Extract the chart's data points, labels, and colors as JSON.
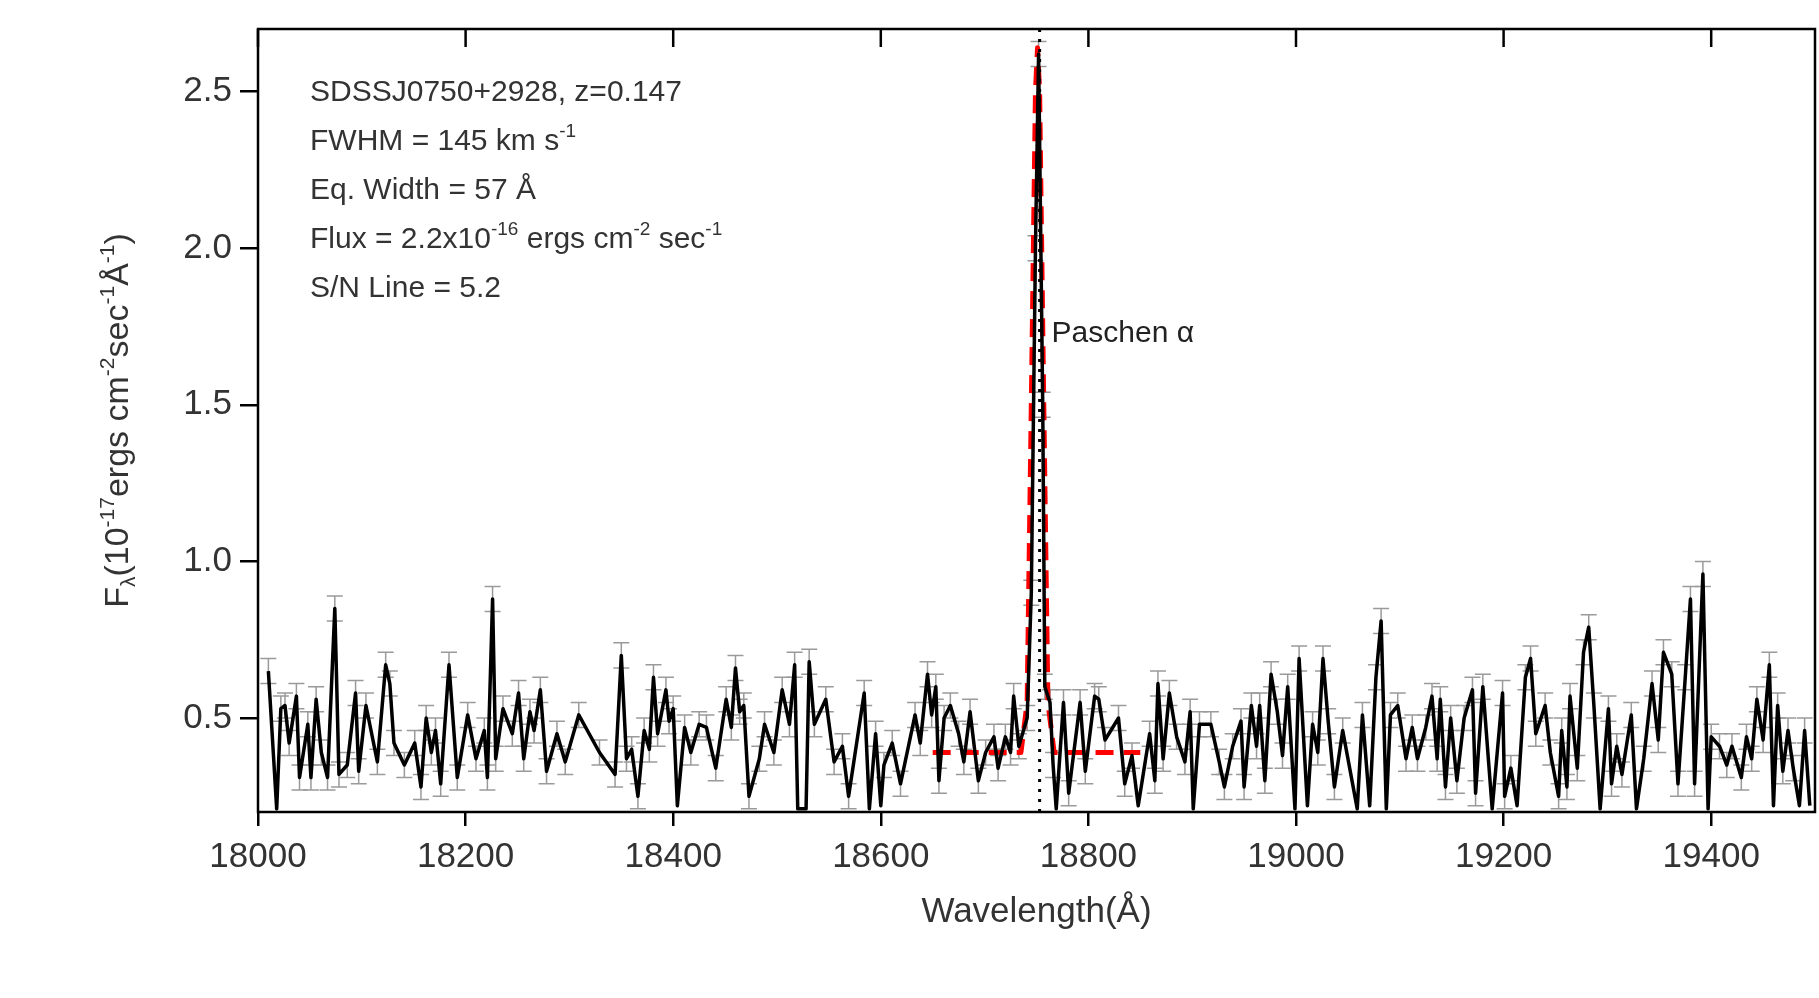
{
  "chart_data": {
    "type": "line",
    "xlabel": "Wavelength(Å)",
    "ylabel": "F$_{λ}$(10$^{-17}$ergs cm$^{-2}$sec$^{-1}$Å$^{-1}$)",
    "annotations": [
      "SDSSJ0750+2928, z=0.147",
      "FWHM = 145 km s$^{-1}$",
      "Eq. Width = 57 Å",
      "Flux = 2.2x10$^{-16}$ ergs cm$^{-2}$ sec$^{-1}$",
      "S/N Line = 5.2"
    ],
    "xlim": [
      18000,
      19500
    ],
    "xticks": [
      18000,
      18200,
      18400,
      18600,
      18800,
      19000,
      19200,
      19400
    ],
    "ylim": [
      0.2,
      2.7
    ],
    "yticks": [
      {
        "value": 0.5,
        "label": "0.5"
      },
      {
        "value": 1,
        "label": "1.0"
      },
      {
        "value": 1.5,
        "label": "1.5"
      },
      {
        "value": 2,
        "label": "2.0"
      },
      {
        "value": 2.5,
        "label": "2.5"
      }
    ],
    "legend": false,
    "marker": "none",
    "ref_lines": [
      {
        "axis": "x",
        "value": 18753,
        "label": "Paschen α",
        "line_style": "dotted",
        "color": "#000000"
      }
    ],
    "series": [
      {
        "type": "line",
        "color": "#000000",
        "line_style": "solid",
        "x": [
          18010,
          18018,
          18022,
          18026,
          18030,
          18037,
          18040,
          18048,
          18051,
          18056,
          18061,
          18067,
          18074,
          18078,
          18086,
          18094,
          18097,
          18104,
          18115,
          18123,
          18127,
          18131,
          18141,
          18151,
          18157,
          18162,
          18167,
          18171,
          18176,
          18184,
          18192,
          18202,
          18210,
          18218,
          18221,
          18226,
          18229,
          18236,
          18245,
          18251,
          18256,
          18262,
          18266,
          18272,
          18278,
          18288,
          18296,
          18309,
          18329,
          18344,
          18350,
          18355,
          18360,
          18366,
          18372,
          18377,
          18381,
          18385,
          18393,
          18396,
          18400,
          18404,
          18411,
          18417,
          18425,
          18432,
          18441,
          18451,
          18456,
          18460,
          18464,
          18468,
          18473,
          18483,
          18488,
          18497,
          18505,
          18512,
          18517,
          18520,
          18528,
          18531,
          18536,
          18547,
          18555,
          18563,
          18569,
          18584,
          18589,
          18595,
          18600,
          18603,
          18611,
          18619,
          18633,
          18638,
          18645,
          18649,
          18653,
          18656,
          18661,
          18667,
          18675,
          18680,
          18686,
          18694,
          18701,
          18709,
          18713,
          18720,
          18725,
          18728,
          18733,
          18741,
          18745,
          18749,
          18752,
          18756,
          18758,
          18763,
          18766,
          18769,
          18776,
          18781,
          18792,
          18797,
          18806,
          18810,
          18816,
          18829,
          18835,
          18842,
          18848,
          18859,
          18864,
          18867,
          18872,
          18878,
          18885,
          18893,
          18898,
          18901,
          18907,
          18918,
          18926,
          18931,
          18939,
          18947,
          18950,
          18957,
          18962,
          18965,
          18970,
          18976,
          18982,
          18987,
          18992,
          18999,
          19003,
          19011,
          19016,
          19021,
          19026,
          19031,
          19037,
          19045,
          19059,
          19064,
          19071,
          19077,
          19082,
          19087,
          19091,
          19098,
          19106,
          19112,
          19117,
          19125,
          19131,
          19136,
          19139,
          19144,
          19149,
          19155,
          19162,
          19170,
          19173,
          19180,
          19189,
          19199,
          19201,
          19207,
          19213,
          19221,
          19226,
          19231,
          19240,
          19245,
          19253,
          19256,
          19261,
          19264,
          19271,
          19277,
          19282,
          19287,
          19293,
          19301,
          19304,
          19309,
          19314,
          19323,
          19328,
          19335,
          19343,
          19349,
          19354,
          19362,
          19368,
          19375,
          19380,
          19384,
          19392,
          19397,
          19400,
          19408,
          19415,
          19420,
          19429,
          19434,
          19439,
          19444,
          19450,
          19456,
          19460,
          19464,
          19469,
          19474,
          19479,
          19485,
          19490,
          19495
        ],
        "values": [
          0.65,
          0.21,
          0.53,
          0.54,
          0.42,
          0.57,
          0.31,
          0.48,
          0.31,
          0.56,
          0.39,
          0.31,
          0.85,
          0.32,
          0.35,
          0.58,
          0.33,
          0.54,
          0.36,
          0.67,
          0.61,
          0.42,
          0.35,
          0.42,
          0.28,
          0.5,
          0.39,
          0.46,
          0.29,
          0.67,
          0.31,
          0.51,
          0.37,
          0.46,
          0.31,
          0.88,
          0.37,
          0.53,
          0.45,
          0.58,
          0.37,
          0.52,
          0.46,
          0.59,
          0.33,
          0.45,
          0.36,
          0.51,
          0.39,
          0.32,
          0.7,
          0.37,
          0.4,
          0.25,
          0.46,
          0.4,
          0.63,
          0.45,
          0.59,
          0.49,
          0.53,
          0.22,
          0.47,
          0.39,
          0.48,
          0.47,
          0.34,
          0.56,
          0.47,
          0.66,
          0.52,
          0.54,
          0.25,
          0.37,
          0.48,
          0.39,
          0.59,
          0.48,
          0.67,
          0.21,
          0.21,
          0.68,
          0.48,
          0.56,
          0.36,
          0.41,
          0.25,
          0.58,
          0.21,
          0.45,
          0.22,
          0.35,
          0.42,
          0.29,
          0.51,
          0.42,
          0.64,
          0.51,
          0.6,
          0.3,
          0.5,
          0.54,
          0.45,
          0.36,
          0.52,
          0.3,
          0.39,
          0.44,
          0.34,
          0.44,
          0.39,
          0.57,
          0.41,
          0.5,
          0.9,
          2.0,
          2.62,
          1.5,
          0.6,
          0.55,
          0.35,
          0.21,
          0.55,
          0.26,
          0.55,
          0.33,
          0.57,
          0.56,
          0.43,
          0.5,
          0.29,
          0.38,
          0.22,
          0.45,
          0.3,
          0.61,
          0.37,
          0.58,
          0.44,
          0.36,
          0.52,
          0.21,
          0.48,
          0.48,
          0.36,
          0.28,
          0.41,
          0.49,
          0.28,
          0.54,
          0.41,
          0.54,
          0.3,
          0.64,
          0.52,
          0.38,
          0.6,
          0.21,
          0.69,
          0.22,
          0.48,
          0.39,
          0.69,
          0.49,
          0.28,
          0.46,
          0.21,
          0.51,
          0.22,
          0.63,
          0.81,
          0.21,
          0.51,
          0.54,
          0.37,
          0.47,
          0.37,
          0.47,
          0.57,
          0.37,
          0.56,
          0.28,
          0.5,
          0.3,
          0.5,
          0.59,
          0.26,
          0.6,
          0.21,
          0.58,
          0.25,
          0.34,
          0.22,
          0.63,
          0.69,
          0.45,
          0.54,
          0.39,
          0.25,
          0.46,
          0.28,
          0.57,
          0.34,
          0.71,
          0.79,
          0.54,
          0.21,
          0.53,
          0.29,
          0.41,
          0.32,
          0.51,
          0.21,
          0.37,
          0.61,
          0.43,
          0.71,
          0.64,
          0.29,
          0.63,
          0.88,
          0.29,
          0.96,
          0.21,
          0.44,
          0.41,
          0.35,
          0.41,
          0.31,
          0.44,
          0.37,
          0.56,
          0.43,
          0.67,
          0.22,
          0.54,
          0.33,
          0.46,
          0.34,
          0.22,
          0.46,
          0.22
        ],
        "errors": [
          0.04,
          null,
          0.04,
          0.04,
          0.04,
          0.04,
          0.04,
          0.04,
          0.04,
          0.04,
          0.04,
          0.04,
          0.04,
          0.04,
          0.04,
          0.04,
          0.04,
          0.04,
          0.04,
          0.04,
          0.04,
          0.04,
          0.04,
          0.04,
          0.04,
          0.04,
          0.04,
          0.04,
          0.04,
          0.04,
          0.04,
          0.04,
          0.04,
          0.04,
          0.04,
          0.04,
          0.04,
          0.04,
          0.04,
          0.04,
          0.04,
          0.04,
          0.04,
          0.04,
          0.04,
          0.04,
          0.04,
          0.04,
          0.04,
          0.04,
          0.04,
          0.04,
          0.04,
          0.04,
          0.04,
          0.04,
          0.04,
          0.04,
          0.04,
          0.04,
          0.04,
          null,
          0.04,
          0.04,
          0.04,
          0.04,
          0.04,
          0.04,
          0.04,
          0.04,
          0.04,
          0.04,
          0.04,
          0.04,
          0.04,
          0.04,
          0.04,
          0.04,
          0.04,
          null,
          null,
          0.04,
          0.04,
          0.04,
          0.04,
          0.04,
          0.04,
          0.04,
          null,
          0.04,
          null,
          0.04,
          0.04,
          0.04,
          0.04,
          0.04,
          0.04,
          0.04,
          0.04,
          0.04,
          0.04,
          0.04,
          0.04,
          0.04,
          0.04,
          0.04,
          0.04,
          0.04,
          0.04,
          0.04,
          0.04,
          0.04,
          0.04,
          0.04,
          0.04,
          0.04,
          0.04,
          0.04,
          0.04,
          0.04,
          0.04,
          null,
          0.04,
          0.04,
          0.04,
          0.04,
          0.04,
          0.04,
          0.04,
          0.04,
          0.04,
          0.04,
          null,
          0.04,
          0.04,
          0.04,
          0.04,
          0.04,
          0.04,
          0.04,
          0.04,
          null,
          0.04,
          0.04,
          0.04,
          0.04,
          0.04,
          0.04,
          0.04,
          0.04,
          0.04,
          0.04,
          0.04,
          0.04,
          0.04,
          0.04,
          0.04,
          null,
          0.04,
          null,
          0.04,
          0.04,
          0.04,
          0.04,
          0.04,
          0.04,
          null,
          0.04,
          null,
          0.04,
          0.04,
          null,
          0.04,
          0.04,
          0.04,
          0.04,
          0.04,
          0.04,
          0.04,
          0.04,
          0.04,
          0.04,
          0.04,
          0.04,
          0.04,
          0.04,
          0.04,
          0.04,
          null,
          0.04,
          0.04,
          0.04,
          null,
          0.04,
          0.04,
          0.04,
          0.04,
          0.04,
          0.04,
          0.04,
          0.04,
          0.04,
          0.04,
          0.04,
          0.04,
          0.04,
          null,
          0.04,
          0.04,
          0.04,
          0.04,
          0.04,
          null,
          0.04,
          0.04,
          0.04,
          0.04,
          0.04,
          0.04,
          0.04,
          0.04,
          0.04,
          0.04,
          null,
          0.04,
          0.04,
          0.04,
          0.04,
          0.04,
          0.04,
          0.04,
          0.04,
          0.04,
          0.04,
          null,
          0.04,
          0.04,
          0.04,
          0.04,
          null,
          0.04,
          null
        ]
      },
      {
        "type": "line",
        "color": "#ff0000",
        "line_style": "dashed",
        "x": [
          18650,
          18735,
          18741,
          18745,
          18749,
          18751,
          18753,
          18757,
          18761,
          18767,
          18850
        ],
        "values": [
          0.39,
          0.39,
          0.55,
          1.5,
          2.5,
          2.64,
          2.5,
          1.5,
          0.55,
          0.39,
          0.39
        ]
      }
    ]
  }
}
